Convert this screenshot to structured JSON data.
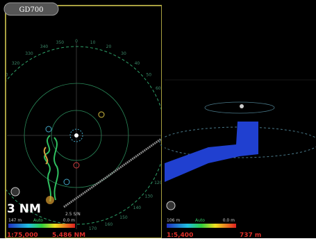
{
  "header": {
    "title": "GD700"
  },
  "left_panel": {
    "range": "3 NM",
    "scale": "1:75,000",
    "distance": "5.486 NM",
    "depth_min": "147 m",
    "legend_mode": "Auto",
    "depth_max": "0.0 m",
    "sog_label": "2.5 S/N",
    "compass_labels": [
      "300",
      "310",
      "320",
      "330",
      "340",
      "350",
      "0",
      "10",
      "20",
      "30",
      "40",
      "50",
      "60",
      "70",
      "80",
      "90",
      "100",
      "110",
      "120",
      "130",
      "140",
      "150",
      "160",
      "170"
    ]
  },
  "right_panel": {
    "scale": "1:5,400",
    "distance": "737 m",
    "depth_min": "106 m",
    "legend_mode": "Auto",
    "depth_max": "0.0 m"
  }
}
